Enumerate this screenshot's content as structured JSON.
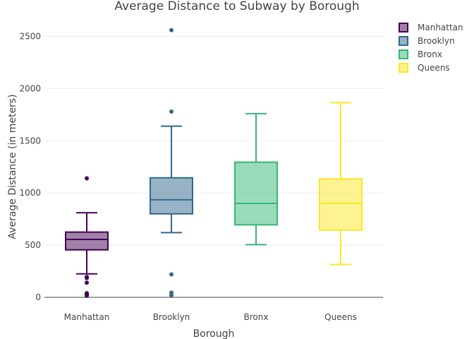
{
  "chart_data": {
    "type": "box",
    "title": "Average Distance to Subway by Borough",
    "xlabel": "Borough",
    "ylabel": "Average Distance (in meters)",
    "ylim": [
      0,
      2700
    ],
    "yticks": [
      0,
      500,
      1000,
      1500,
      2000,
      2500
    ],
    "grid": true,
    "legend_position": "top-right",
    "categories": [
      "Manhattan",
      "Brooklyn",
      "Bronx",
      "Queens"
    ],
    "series": [
      {
        "name": "Manhattan",
        "color": "#440154",
        "lower_whisker": 225,
        "q1": 455,
        "median": 555,
        "q3": 625,
        "upper_whisker": 810,
        "outliers": [
          1140,
          195,
          185,
          140,
          40,
          30,
          20,
          15
        ]
      },
      {
        "name": "Brooklyn",
        "color": "#31688e",
        "lower_whisker": 620,
        "q1": 800,
        "median": 935,
        "q3": 1145,
        "upper_whisker": 1640,
        "outliers": [
          2560,
          1780,
          220,
          45,
          20
        ]
      },
      {
        "name": "Bronx",
        "color": "#35b779",
        "lower_whisker": 505,
        "q1": 695,
        "median": 900,
        "q3": 1295,
        "upper_whisker": 1760,
        "outliers": []
      },
      {
        "name": "Queens",
        "color": "#fde725",
        "lower_whisker": 315,
        "q1": 645,
        "median": 900,
        "q3": 1135,
        "upper_whisker": 1865,
        "outliers": []
      }
    ]
  }
}
